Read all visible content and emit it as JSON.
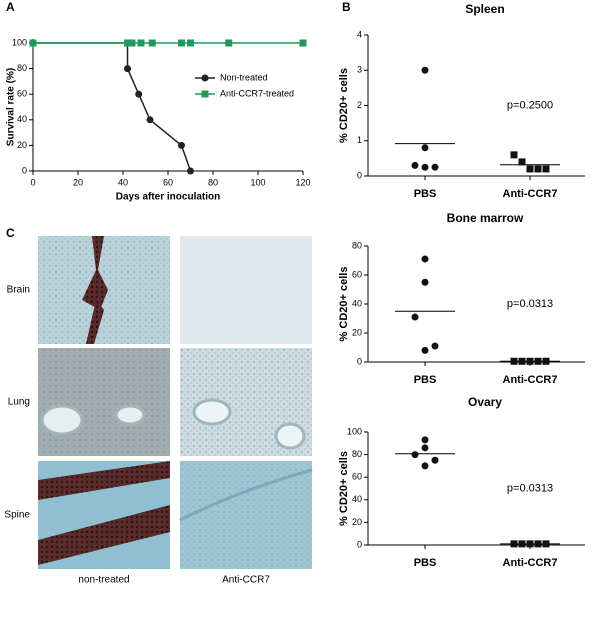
{
  "panel_labels": [
    "A",
    "B",
    "C"
  ],
  "chart_data": [
    {
      "type": "line",
      "xlabel": "Days after inoculation",
      "ylabel": "Survival rate (%)",
      "xlim": [
        0,
        120
      ],
      "xticks": [
        0,
        20,
        40,
        60,
        80,
        100,
        120
      ],
      "ylim": [
        0,
        100
      ],
      "yticks": [
        0,
        20,
        40,
        60,
        80,
        100
      ],
      "series": [
        {
          "name": "Non-treated",
          "color": "#222222",
          "marker": "circle",
          "x": [
            0,
            42,
            42,
            47,
            52,
            66,
            70
          ],
          "values": [
            100,
            100,
            80,
            60,
            40,
            20,
            0
          ]
        },
        {
          "name": "Anti-CCR7-treated",
          "color": "#1f9a5a",
          "marker": "square",
          "x": [
            0,
            42,
            44,
            48,
            53,
            66,
            70,
            87,
            120
          ],
          "values": [
            100,
            100,
            100,
            100,
            100,
            100,
            100,
            100,
            100
          ]
        }
      ]
    },
    {
      "type": "strip",
      "title": "Spleen",
      "ylabel": "% CD20+ cells",
      "annotation": "p=0.2500",
      "ylim": [
        0,
        4
      ],
      "yticks": [
        0,
        1,
        2,
        3,
        4
      ],
      "series": [
        {
          "name": "PBS",
          "marker": "circle",
          "values": [
            3.0,
            0.8,
            0.3,
            0.25,
            0.25
          ],
          "mean": 0.92
        },
        {
          "name": "Anti-CCR7",
          "marker": "square",
          "values": [
            0.6,
            0.4,
            0.2,
            0.2,
            0.2
          ],
          "mean": 0.32
        }
      ]
    },
    {
      "type": "strip",
      "title": "Bone marrow",
      "ylabel": "% CD20+ cells",
      "annotation": "p=0.0313",
      "ylim": [
        0,
        80
      ],
      "yticks": [
        0,
        20,
        40,
        60,
        80
      ],
      "series": [
        {
          "name": "PBS",
          "marker": "circle",
          "values": [
            71,
            55,
            31,
            11,
            8
          ],
          "mean": 35
        },
        {
          "name": "Anti-CCR7",
          "marker": "square",
          "values": [
            0.5,
            0.5,
            0.5,
            0.5,
            0.5
          ],
          "mean": 0.5
        }
      ]
    },
    {
      "type": "strip",
      "title": "Ovary",
      "ylabel": "% CD20+ cells",
      "annotation": "p=0.0313",
      "ylim": [
        0,
        100
      ],
      "yticks": [
        0,
        20,
        40,
        60,
        80,
        100
      ],
      "series": [
        {
          "name": "PBS",
          "marker": "circle",
          "values": [
            93,
            86,
            80,
            75,
            70
          ],
          "mean": 80.8
        },
        {
          "name": "Anti-CCR7",
          "marker": "square",
          "values": [
            1,
            1,
            1,
            1,
            1
          ],
          "mean": 1
        }
      ]
    }
  ],
  "histology": {
    "rows": [
      "Brain",
      "Lung",
      "Spine"
    ],
    "columns": [
      "non-treated",
      "Anti-CCR7"
    ]
  }
}
